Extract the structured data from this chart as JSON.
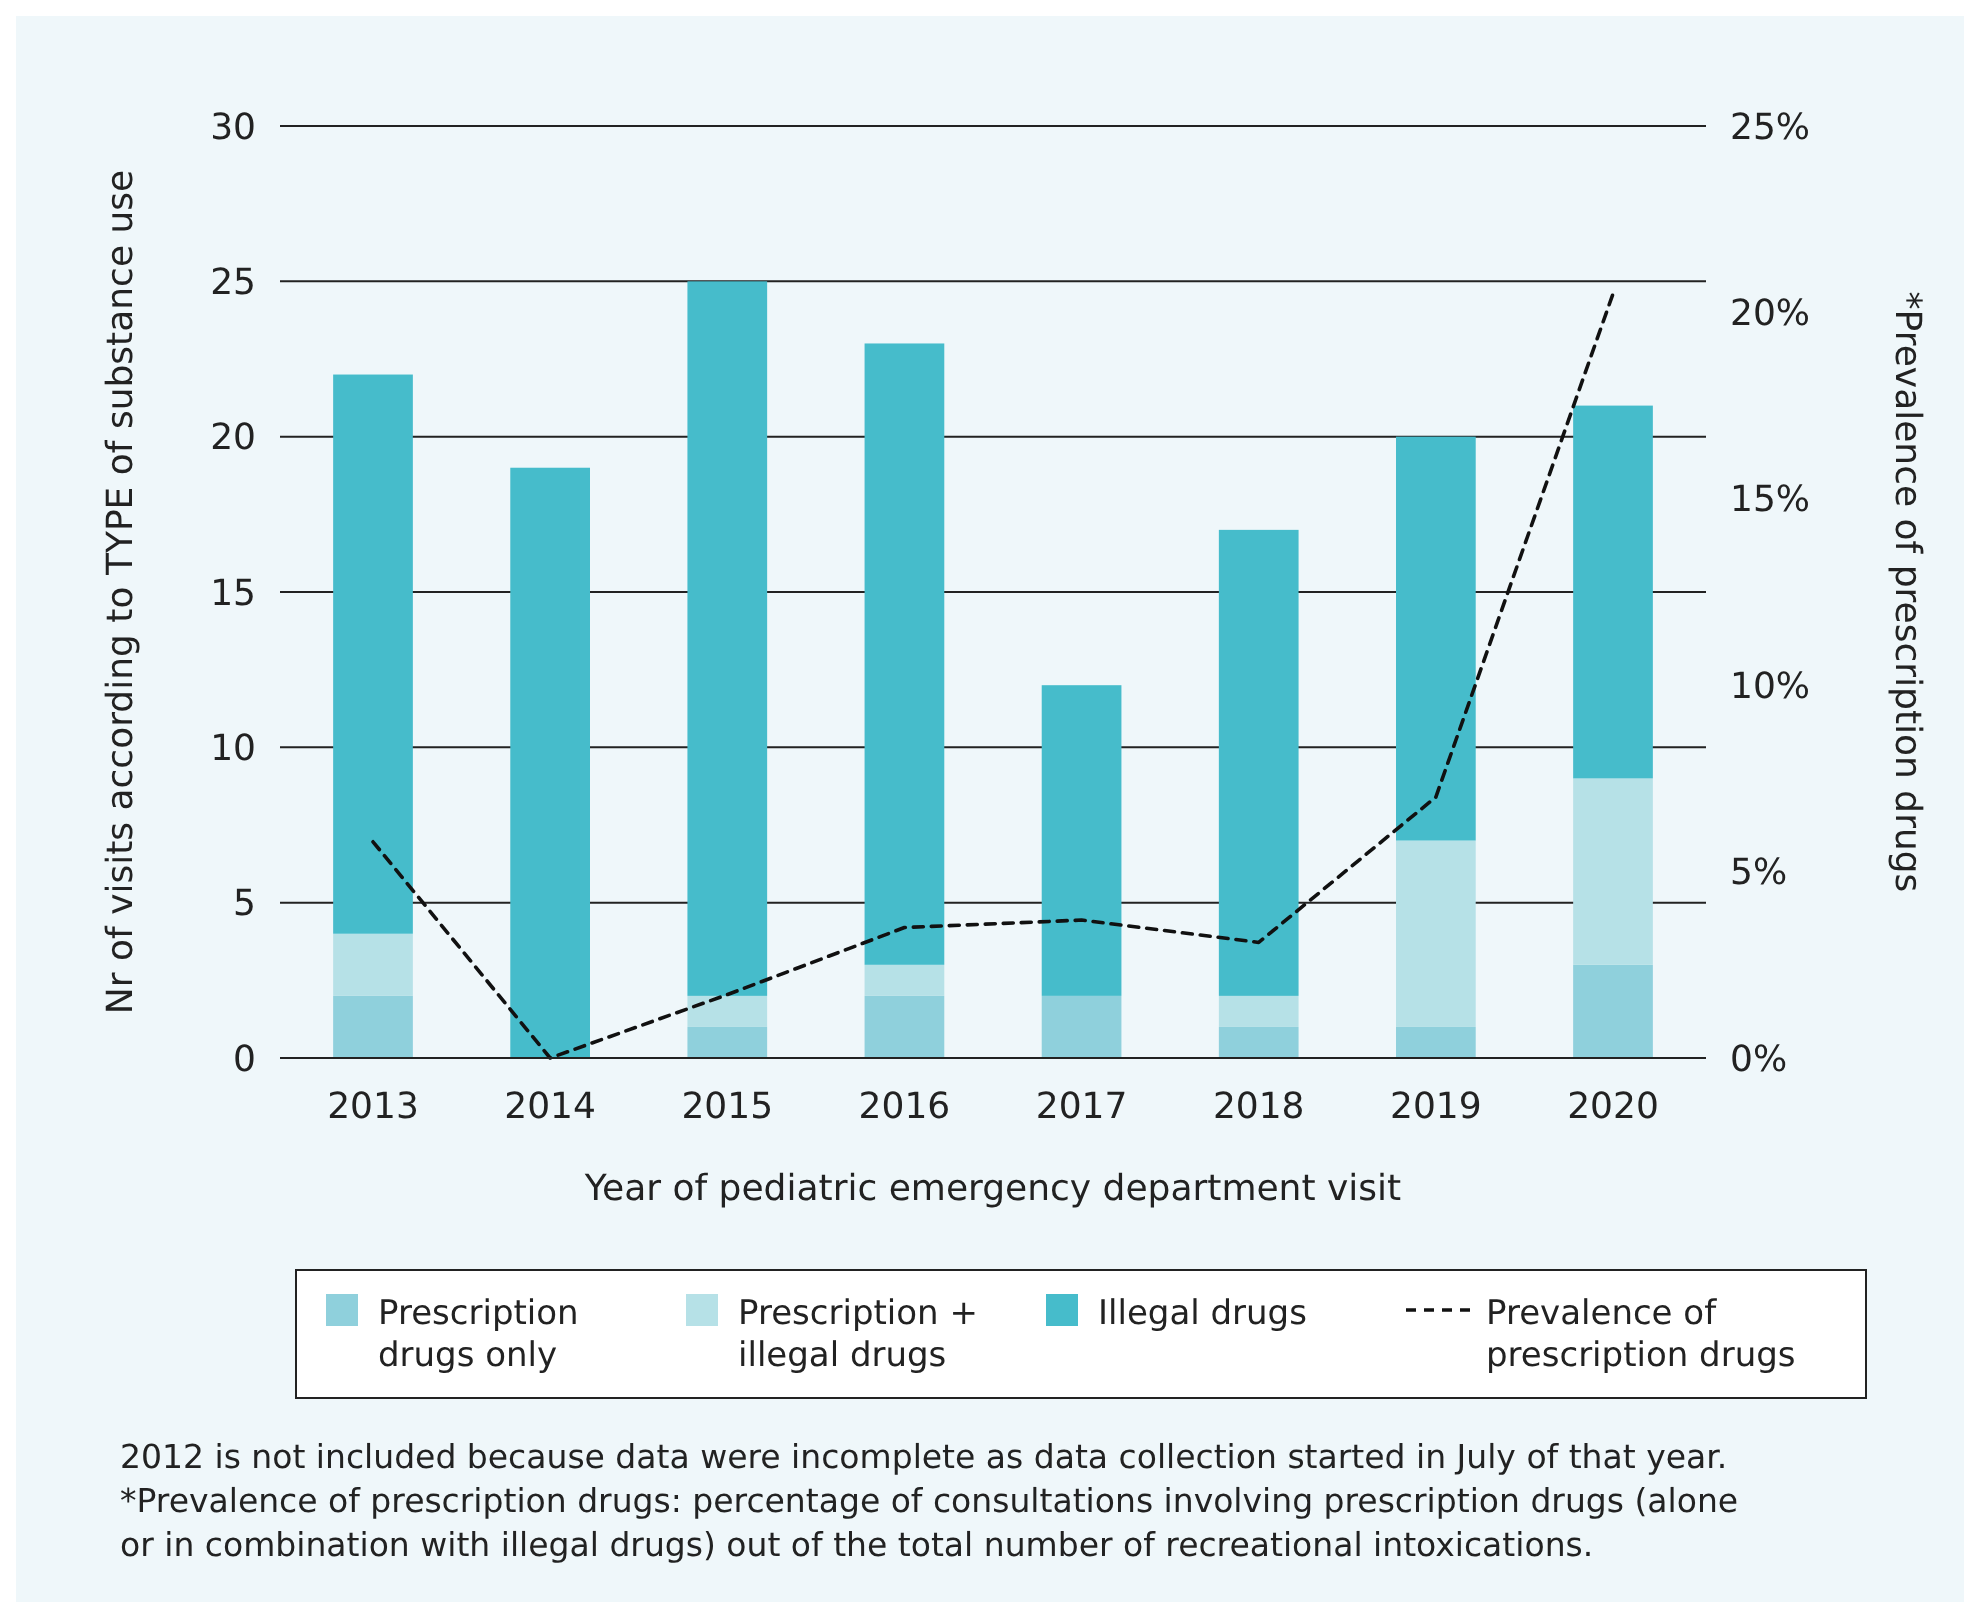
{
  "chart_data": {
    "type": "bar",
    "stacked": true,
    "categories": [
      "2013",
      "2014",
      "2015",
      "2016",
      "2017",
      "2018",
      "2019",
      "2020"
    ],
    "series": [
      {
        "name": "Prescription drugs only",
        "color": "#8fd0dc",
        "values": [
          2,
          0,
          1,
          2,
          2,
          1,
          1,
          3
        ]
      },
      {
        "name": "Prescription + illegal drugs",
        "color": "#b6e1e7",
        "values": [
          2,
          0,
          1,
          1,
          0,
          1,
          6,
          6
        ]
      },
      {
        "name": "Illegal drugs",
        "color": "#46bccb",
        "values": [
          18,
          19,
          23,
          20,
          10,
          15,
          13,
          12
        ]
      },
      {
        "name": "Prevalence of prescription drugs",
        "type": "line",
        "axis": "y2",
        "color": "#111111",
        "line_style": "dashed",
        "marker": "none",
        "values": [
          5.8,
          0,
          1.7,
          3.5,
          3.7,
          3.1,
          7.0,
          20.5
        ]
      }
    ],
    "ylim": [
      0,
      30
    ],
    "yticks": [
      0,
      5,
      10,
      15,
      20,
      25,
      30
    ],
    "y2lim": [
      0,
      25
    ],
    "y2ticks": [
      {
        "value": 0,
        "label": "0%"
      },
      {
        "value": 5,
        "label": "5%"
      },
      {
        "value": 10,
        "label": "10%"
      },
      {
        "value": 15,
        "label": "15%"
      },
      {
        "value": 20,
        "label": "20%"
      },
      {
        "value": 25,
        "label": "25%"
      }
    ],
    "xlabel": "Year of pediatric emergency department visit",
    "ylabel": "Nr of visits according to TYPE of substance use",
    "y2label": "*Prevalence of prescription drugs",
    "grid": "y",
    "legend": "bottom",
    "annotations": [
      "2012 is not included because data were incomplete as data collection started in July of that year.",
      "*Prevalence of prescription drugs: percentage of consultations involving prescription drugs (alone or in combination with illegal drugs) out of the total number of recreational intoxications."
    ]
  }
}
